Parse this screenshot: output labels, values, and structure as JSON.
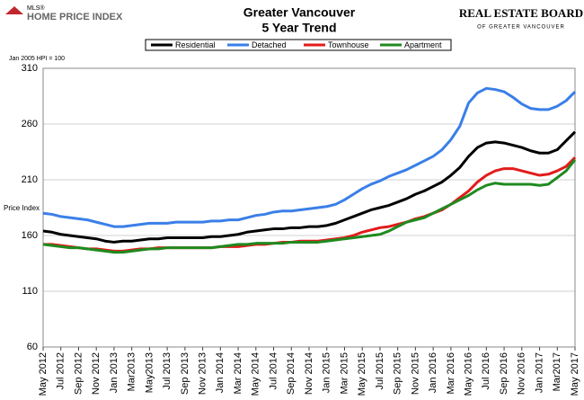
{
  "logos": {
    "left_small": "MLS®",
    "left": "HOME PRICE INDEX",
    "right": "REAL ESTATE BOARD",
    "right_sub": "OF GREATER VANCOUVER"
  },
  "chart_data": {
    "type": "line",
    "title": "Greater Vancouver",
    "subtitle": "5 Year Trend",
    "note": "Jan 2005 HPI = 100",
    "y_label": "Price Index",
    "categories": [
      "May 2012",
      null,
      "Jul 2012",
      null,
      "Sep 2012",
      null,
      "Nov 2012",
      null,
      "Jan 2013",
      null,
      "Mar2013",
      null,
      "May2013",
      null,
      "Jul 2013",
      null,
      "Sep 2013",
      null,
      "Nov 2013",
      null,
      "Jan 2014",
      null,
      "Mar 2014",
      null,
      "May 2014",
      null,
      "Jul 2014",
      null,
      "Sep 2014",
      null,
      "Nov 2014",
      null,
      "Jan 2015",
      null,
      "Mar 2015",
      null,
      "May 2015",
      null,
      "Jul 2015",
      null,
      "Sep 2015",
      null,
      "Nov 2015",
      null,
      "Jan 2016",
      null,
      "Mar 2016",
      null,
      "May 2016",
      null,
      "Jul 2016",
      null,
      "Sep 2016",
      null,
      "Nov 2016",
      null,
      "Jan 2017",
      null,
      "Mar2017",
      null,
      "May 2017"
    ],
    "series": [
      {
        "name": "Residential",
        "color": "#000000",
        "values": [
          164,
          163,
          161,
          160,
          159,
          158,
          157,
          155,
          154,
          155,
          155,
          156,
          157,
          157,
          158,
          158,
          158,
          158,
          158,
          159,
          159,
          160,
          161,
          163,
          164,
          165,
          166,
          166,
          167,
          167,
          168,
          168,
          169,
          171,
          174,
          177,
          180,
          183,
          185,
          187,
          190,
          193,
          197,
          200,
          204,
          208,
          214,
          221,
          231,
          239,
          243,
          244,
          243,
          241,
          239,
          236,
          234,
          234,
          237,
          245,
          253
        ]
      },
      {
        "name": "Detached",
        "color": "#3a7fe8",
        "values": [
          180,
          179,
          177,
          176,
          175,
          174,
          172,
          170,
          168,
          168,
          169,
          170,
          171,
          171,
          171,
          172,
          172,
          172,
          172,
          173,
          173,
          174,
          174,
          176,
          178,
          179,
          181,
          182,
          182,
          183,
          184,
          185,
          186,
          188,
          192,
          197,
          202,
          206,
          209,
          213,
          216,
          219,
          223,
          227,
          231,
          237,
          246,
          258,
          279,
          288,
          292,
          291,
          289,
          284,
          278,
          274,
          273,
          273,
          276,
          281,
          289
        ]
      },
      {
        "name": "Townhouse",
        "color": "#e21b1b",
        "values": [
          152,
          152,
          151,
          150,
          149,
          148,
          148,
          147,
          146,
          146,
          147,
          148,
          148,
          149,
          149,
          149,
          149,
          149,
          149,
          149,
          150,
          150,
          150,
          151,
          152,
          152,
          153,
          154,
          154,
          155,
          155,
          155,
          156,
          157,
          158,
          160,
          163,
          165,
          167,
          168,
          170,
          172,
          175,
          177,
          180,
          183,
          188,
          194,
          200,
          208,
          214,
          218,
          220,
          220,
          218,
          216,
          214,
          215,
          218,
          222,
          230
        ]
      },
      {
        "name": "Apartment",
        "color": "#1f8a1f",
        "values": [
          152,
          151,
          150,
          149,
          149,
          148,
          147,
          146,
          145,
          145,
          146,
          147,
          148,
          148,
          149,
          149,
          149,
          149,
          149,
          149,
          150,
          151,
          152,
          152,
          153,
          153,
          153,
          153,
          154,
          154,
          154,
          154,
          155,
          156,
          157,
          158,
          159,
          160,
          161,
          164,
          168,
          172,
          174,
          176,
          180,
          184,
          188,
          192,
          196,
          201,
          205,
          207,
          206,
          206,
          206,
          206,
          205,
          206,
          212,
          218,
          228
        ]
      }
    ],
    "ylim": [
      60,
      310
    ],
    "yticks": [
      60,
      110,
      160,
      210,
      260,
      310
    ],
    "grid": true
  }
}
